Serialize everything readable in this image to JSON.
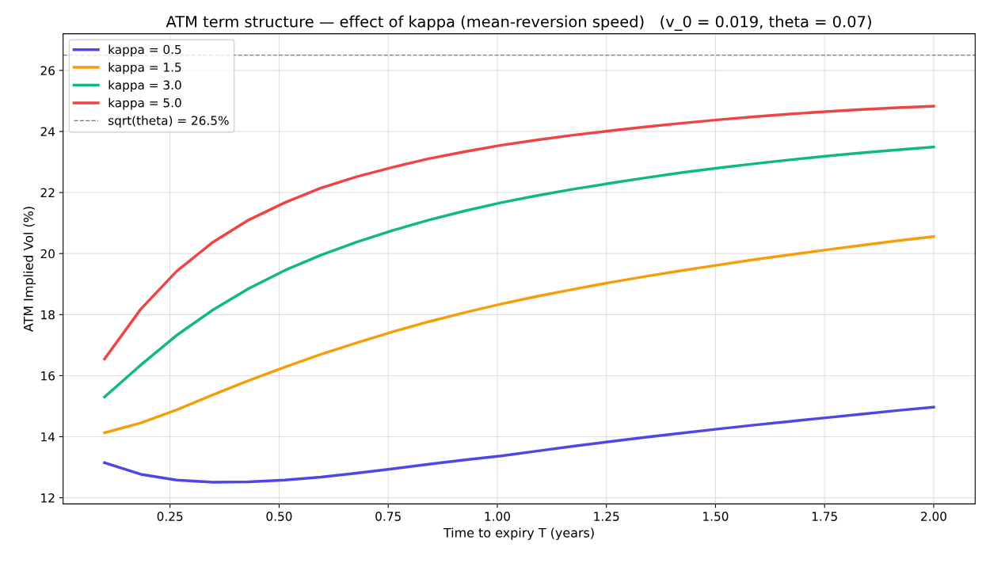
{
  "chart_data": {
    "type": "line",
    "title": "ATM term structure — effect of kappa (mean-reversion speed)   (v_0 = 0.019, theta = 0.07)",
    "xlabel": "Time to expiry T (years)",
    "ylabel": "ATM Implied Vol (%)",
    "x": [
      0.1,
      0.183,
      0.265,
      0.348,
      0.43,
      0.513,
      0.596,
      0.678,
      0.761,
      0.843,
      0.926,
      1.009,
      1.091,
      1.174,
      1.257,
      1.339,
      1.422,
      1.504,
      1.587,
      1.67,
      1.752,
      1.835,
      1.917,
      2.0
    ],
    "series": [
      {
        "name": "kappa = 0.5",
        "color": "#4f46e5",
        "values": [
          13.15,
          12.77,
          12.58,
          12.51,
          12.52,
          12.58,
          12.68,
          12.81,
          12.95,
          13.1,
          13.24,
          13.37,
          13.53,
          13.69,
          13.84,
          13.98,
          14.12,
          14.25,
          14.38,
          14.5,
          14.62,
          14.74,
          14.86,
          14.97
        ]
      },
      {
        "name": "kappa = 1.5",
        "color": "#f59e0b",
        "values": [
          14.13,
          14.45,
          14.88,
          15.37,
          15.84,
          16.28,
          16.7,
          17.08,
          17.44,
          17.77,
          18.07,
          18.35,
          18.6,
          18.83,
          19.05,
          19.25,
          19.44,
          19.62,
          19.8,
          19.96,
          20.12,
          20.27,
          20.42,
          20.56
        ]
      },
      {
        "name": "kappa = 3.0",
        "color": "#10b981",
        "values": [
          15.3,
          16.35,
          17.32,
          18.15,
          18.85,
          19.45,
          19.95,
          20.38,
          20.76,
          21.1,
          21.4,
          21.67,
          21.9,
          22.11,
          22.3,
          22.48,
          22.65,
          22.8,
          22.94,
          23.07,
          23.19,
          23.3,
          23.4,
          23.49
        ]
      },
      {
        "name": "kappa = 5.0",
        "color": "#ef4444",
        "values": [
          16.55,
          18.18,
          19.42,
          20.37,
          21.1,
          21.67,
          22.15,
          22.52,
          22.83,
          23.11,
          23.34,
          23.55,
          23.72,
          23.88,
          24.02,
          24.15,
          24.27,
          24.38,
          24.48,
          24.57,
          24.65,
          24.72,
          24.78,
          24.83
        ]
      }
    ],
    "ref_lines": [
      {
        "axis": "y",
        "value": 26.5,
        "label": "sqrt(theta) = 26.5%",
        "color": "#777777",
        "line_style": "dashed"
      }
    ],
    "xlim": [
      0.005,
      2.095
    ],
    "ylim": [
      11.8,
      27.2
    ],
    "xticks": [
      {
        "value": 0.25,
        "label": "0.25"
      },
      {
        "value": 0.5,
        "label": "0.50"
      },
      {
        "value": 0.75,
        "label": "0.75"
      },
      {
        "value": 1.0,
        "label": "1.00"
      },
      {
        "value": 1.25,
        "label": "1.25"
      },
      {
        "value": 1.5,
        "label": "1.50"
      },
      {
        "value": 1.75,
        "label": "1.75"
      },
      {
        "value": 2.0,
        "label": "2.00"
      }
    ],
    "yticks": [
      12,
      14,
      16,
      18,
      20,
      22,
      24,
      26
    ],
    "grid": true,
    "legend": "top left",
    "line_style": "solid",
    "marker": "none"
  }
}
